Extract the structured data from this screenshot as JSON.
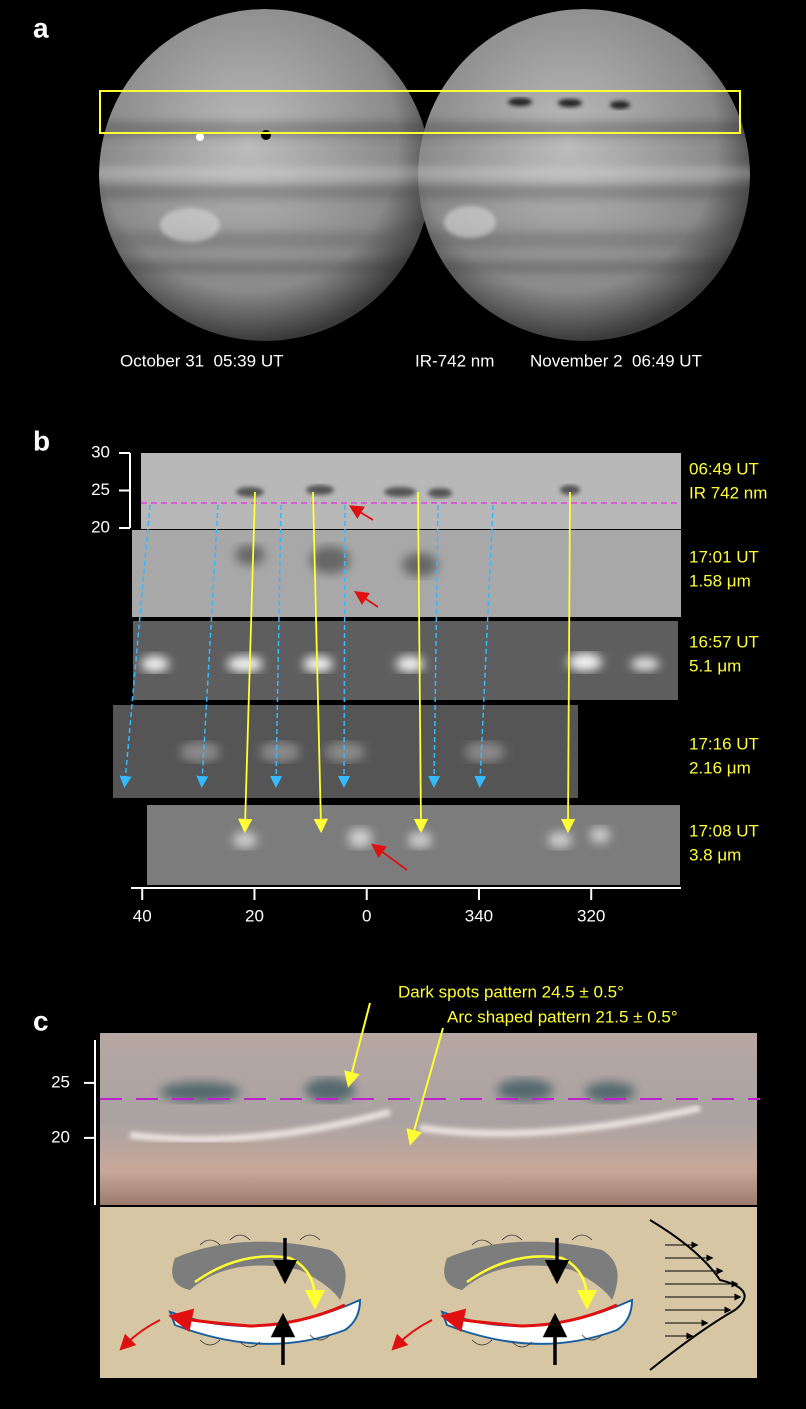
{
  "panel_a": {
    "letter": "a",
    "captions": [
      "October 31  05:39 UT",
      "IR-742 nm",
      "November 2  06:49 UT"
    ]
  },
  "panel_b": {
    "letter": "b",
    "ylim": [
      20,
      30
    ],
    "yticks": [
      30,
      25,
      20
    ],
    "xlim": [
      42,
      -56
    ],
    "xticks": [
      40,
      20,
      0,
      {
        "value": -20,
        "label": "340"
      },
      {
        "value": -40,
        "label": "320"
      }
    ],
    "rows": [
      [
        "06:49 UT",
        "IR 742 nm"
      ],
      [
        "17:01 UT",
        "1.58 μm"
      ],
      [
        "16:57 UT",
        "5.1 μm"
      ],
      [
        "17:16 UT",
        "2.16 μm"
      ],
      [
        "17:08 UT",
        "3.8 μm"
      ]
    ]
  },
  "panel_c": {
    "letter": "c",
    "ylim": [
      13.9,
      28.9
    ],
    "yticks": [
      25,
      20
    ],
    "annotations": [
      "Dark spots pattern 24.5 ± 0.5°",
      "Arc shaped pattern 21.5 ± 0.5°"
    ]
  }
}
